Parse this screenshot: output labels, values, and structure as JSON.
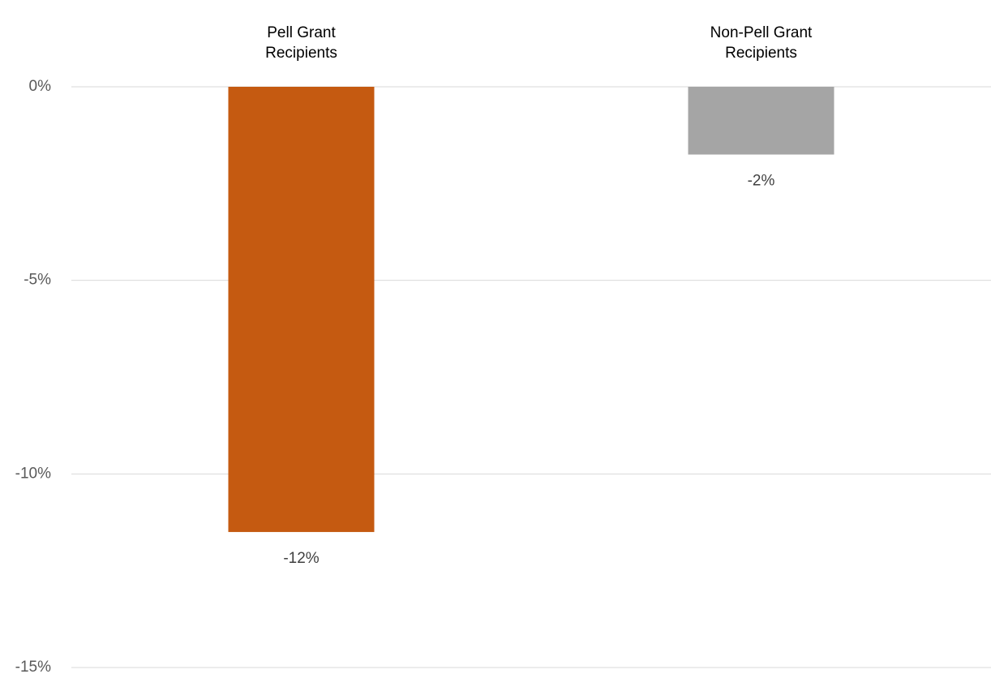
{
  "chart_data": {
    "type": "bar",
    "categories": [
      [
        "Pell Grant",
        "Recipients"
      ],
      [
        "Non-Pell Grant",
        "Recipients"
      ]
    ],
    "values": [
      -11.5,
      -1.75
    ],
    "data_labels": [
      "-12%",
      "-2%"
    ],
    "bar_colors": [
      "#c55a11",
      "#a5a5a5"
    ],
    "ylim": [
      -15,
      0
    ],
    "yticks": [
      0,
      -5,
      -10,
      -15
    ],
    "ytick_labels": [
      "0%",
      "-5%",
      "-10%",
      "-15%"
    ],
    "category_axis_position": "top",
    "grid": true,
    "legend": false
  }
}
